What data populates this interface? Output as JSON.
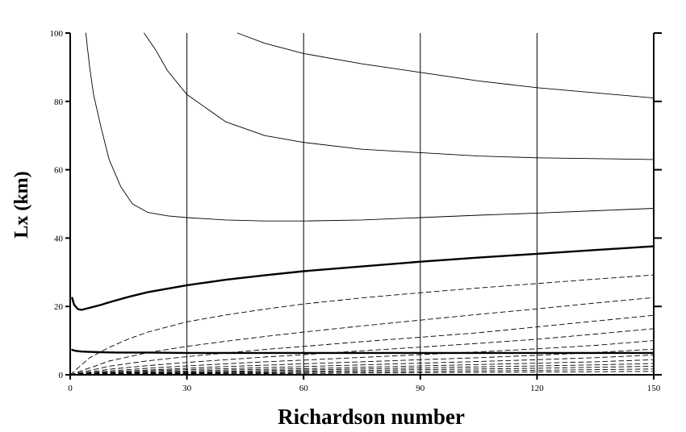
{
  "chart_data": {
    "type": "line",
    "title": "",
    "xlabel": "Richardson number",
    "ylabel": "Lx (km)",
    "xlim": [
      0,
      150
    ],
    "ylim": [
      0,
      100
    ],
    "xticks": [
      0,
      30,
      60,
      90,
      120,
      150
    ],
    "yticks": [
      0,
      20,
      40,
      60,
      80,
      100
    ],
    "grid": "vertical lines at x ticks",
    "legend": "none",
    "series": [
      {
        "style": "solid-thin",
        "x": [
          43,
          50,
          60,
          75,
          90,
          105,
          120,
          135,
          150
        ],
        "y": [
          100,
          97,
          94,
          91,
          88.5,
          86,
          84,
          82.5,
          81
        ]
      },
      {
        "style": "solid-thin",
        "x": [
          19,
          22,
          25,
          30,
          40,
          50,
          60,
          75,
          90,
          105,
          120,
          150
        ],
        "y": [
          100,
          95,
          89,
          82,
          74,
          70,
          68,
          66,
          65,
          64,
          63.5,
          63
        ]
      },
      {
        "style": "solid-thin",
        "x": [
          4,
          5,
          6,
          8,
          10,
          13,
          16,
          20,
          25,
          30,
          40,
          50,
          60,
          75,
          90,
          105,
          120,
          135,
          150
        ],
        "y": [
          100,
          90,
          82,
          72,
          63,
          55,
          50,
          47.5,
          46.5,
          46,
          45.3,
          45,
          45,
          45.3,
          46,
          46.7,
          47.3,
          48,
          48.7
        ]
      },
      {
        "style": "solid-thick",
        "x": [
          0.5,
          1,
          2,
          3,
          5,
          8,
          10,
          15,
          20,
          25,
          30,
          40,
          50,
          60,
          75,
          90,
          105,
          120,
          135,
          150
        ],
        "y": [
          22.5,
          20.5,
          19.2,
          19,
          19.6,
          20.5,
          21.2,
          22.8,
          24.2,
          25.2,
          26.2,
          27.8,
          29.1,
          30.3,
          31.7,
          33.1,
          34.3,
          35.4,
          36.5,
          37.6
        ]
      },
      {
        "style": "dashed",
        "x": [
          0,
          5,
          10,
          15,
          20,
          30,
          40,
          50,
          60,
          75,
          90,
          105,
          120,
          135,
          150
        ],
        "y": [
          0,
          5,
          8,
          10.5,
          12.5,
          15.5,
          17.5,
          19.2,
          20.7,
          22.5,
          24,
          25.4,
          26.7,
          28,
          29.2
        ]
      },
      {
        "style": "dashed",
        "x": [
          0,
          10,
          20,
          30,
          40,
          50,
          60,
          75,
          90,
          105,
          120,
          135,
          150
        ],
        "y": [
          0,
          4,
          6.5,
          8.3,
          9.8,
          11.2,
          12.5,
          14.3,
          16,
          17.7,
          19.3,
          21,
          22.6
        ]
      },
      {
        "style": "dashed",
        "x": [
          0,
          10,
          20,
          30,
          40,
          50,
          60,
          75,
          90,
          105,
          120,
          135,
          150
        ],
        "y": [
          0,
          2.5,
          4.1,
          5.3,
          6.4,
          7.4,
          8.3,
          9.7,
          11,
          12.3,
          14,
          15.7,
          17.4
        ]
      },
      {
        "style": "dashed",
        "x": [
          0,
          10,
          20,
          30,
          40,
          50,
          60,
          75,
          90,
          105,
          120,
          135,
          150
        ],
        "y": [
          0,
          1.6,
          2.7,
          3.6,
          4.4,
          5.2,
          5.9,
          7,
          8.1,
          9.2,
          10.4,
          11.9,
          13.5
        ]
      },
      {
        "style": "dashed",
        "x": [
          0,
          10,
          20,
          30,
          40,
          50,
          60,
          75,
          90,
          105,
          120,
          135,
          150
        ],
        "y": [
          0,
          1.1,
          1.9,
          2.6,
          3.2,
          3.8,
          4.3,
          5.1,
          5.9,
          6.7,
          7.6,
          8.6,
          10
        ]
      },
      {
        "style": "dashed",
        "x": [
          0,
          10,
          20,
          30,
          40,
          50,
          60,
          75,
          90,
          105,
          120,
          135,
          150
        ],
        "y": [
          0,
          0.8,
          1.4,
          1.9,
          2.4,
          2.8,
          3.2,
          3.8,
          4.4,
          5,
          5.7,
          6.5,
          7.5
        ]
      },
      {
        "style": "dashed",
        "x": [
          0,
          10,
          20,
          30,
          40,
          50,
          60,
          75,
          90,
          105,
          120,
          135,
          150
        ],
        "y": [
          0,
          0.6,
          1.1,
          1.5,
          1.8,
          2.1,
          2.4,
          2.9,
          3.4,
          3.9,
          4.4,
          5,
          5.8
        ]
      },
      {
        "style": "dashed",
        "x": [
          0,
          10,
          20,
          30,
          40,
          50,
          60,
          75,
          90,
          105,
          120,
          135,
          150
        ],
        "y": [
          0,
          0.4,
          0.8,
          1.1,
          1.4,
          1.6,
          1.8,
          2.2,
          2.6,
          3,
          3.4,
          3.8,
          4.4
        ]
      },
      {
        "style": "dashed",
        "x": [
          0,
          10,
          20,
          30,
          40,
          50,
          60,
          75,
          90,
          105,
          120,
          135,
          150
        ],
        "y": [
          0,
          0.3,
          0.6,
          0.8,
          1,
          1.2,
          1.4,
          1.7,
          2,
          2.3,
          2.6,
          2.9,
          3.3
        ]
      },
      {
        "style": "dashed",
        "x": [
          0,
          10,
          20,
          30,
          40,
          50,
          60,
          75,
          90,
          105,
          120,
          135,
          150
        ],
        "y": [
          0,
          0.2,
          0.4,
          0.6,
          0.75,
          0.9,
          1,
          1.25,
          1.5,
          1.7,
          1.9,
          2.2,
          2.5
        ]
      },
      {
        "style": "dashed",
        "x": [
          0,
          10,
          20,
          30,
          40,
          50,
          60,
          75,
          90,
          105,
          120,
          135,
          150
        ],
        "y": [
          0,
          0.15,
          0.3,
          0.4,
          0.5,
          0.6,
          0.7,
          0.85,
          1,
          1.15,
          1.3,
          1.5,
          1.7
        ]
      },
      {
        "style": "dashed",
        "x": [
          0,
          10,
          20,
          30,
          40,
          50,
          60,
          75,
          90,
          105,
          120,
          135,
          150
        ],
        "y": [
          0,
          0.1,
          0.2,
          0.25,
          0.3,
          0.35,
          0.4,
          0.5,
          0.6,
          0.7,
          0.8,
          0.9,
          1
        ]
      },
      {
        "style": "solid-thick",
        "x": [
          0.5,
          1,
          2,
          3,
          5,
          8,
          12,
          20,
          30,
          45,
          60,
          80,
          100,
          120,
          150
        ],
        "y": [
          7.3,
          7.1,
          6.9,
          6.8,
          6.7,
          6.6,
          6.5,
          6.5,
          6.4,
          6.4,
          6.4,
          6.4,
          6.4,
          6.4,
          6.4
        ]
      }
    ]
  }
}
